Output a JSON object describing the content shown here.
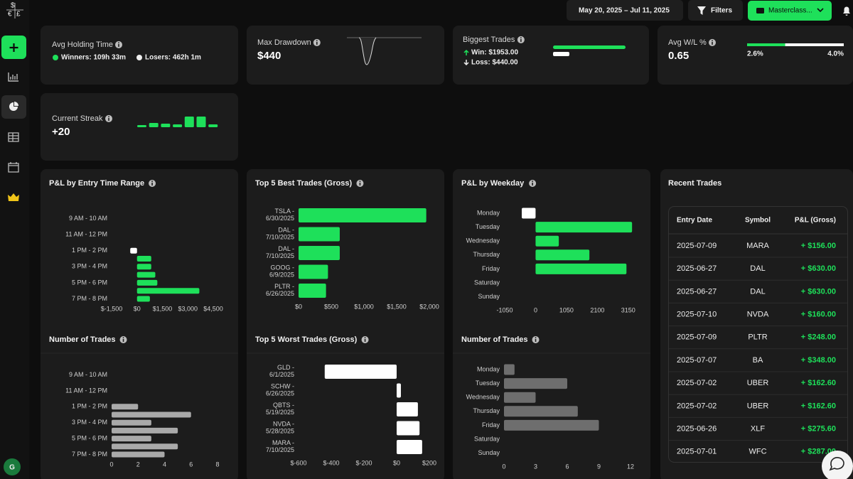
{
  "header": {
    "logo": [
      "$",
      "€",
      "£"
    ],
    "date_range": "May 20, 2025 – Jul 11, 2025",
    "filters": "Filters",
    "account": "Masterclass..."
  },
  "sidebar": {
    "user_initial": "G"
  },
  "stats": {
    "avg_holding_time": {
      "title": "Avg Holding Time",
      "winners": "Winners: 109h 33m",
      "losers": "Losers: 462h 1m"
    },
    "max_drawdown": {
      "title": "Max Drawdown",
      "value": "$440"
    },
    "biggest_trades": {
      "title": "Biggest Trades",
      "win": {
        "label": "Win: $1953.00",
        "value": 1953,
        "color": "#1ee05a"
      },
      "loss": {
        "label": "Loss: $440.00",
        "value": 440,
        "color": "#ffffff"
      }
    },
    "avg_wl": {
      "title": "Avg W/L %",
      "value": "0.65",
      "win": {
        "label": "2.6%",
        "value": 2.6,
        "color": "#1ee05a"
      },
      "loss": {
        "label": "4.0%",
        "value": 4.0,
        "color": "#ffffff"
      }
    },
    "current_streak": {
      "title": "Current Streak",
      "value": "+20",
      "bars": [
        3,
        6,
        5,
        4,
        15,
        15,
        4
      ],
      "color": "#1ee05a"
    }
  },
  "chart_data": [
    {
      "type": "bar",
      "orientation": "horizontal",
      "title": "P&L by Entry Time Range",
      "categories": [
        "9 AM - 10 AM",
        null,
        "11 AM - 12 PM",
        null,
        "1 PM - 2 PM",
        null,
        "3 PM - 4 PM",
        null,
        "5 PM - 6 PM",
        null,
        "7 PM - 8 PM"
      ],
      "values": [
        null,
        null,
        null,
        null,
        -400,
        840,
        840,
        1080,
        1200,
        3680,
        760
      ],
      "color": "#1ee05a",
      "negative_color": "#ffffff",
      "xlim": [
        -1500,
        4500
      ],
      "xticks": [
        {
          "value": -1500,
          "label": "$-1,500"
        },
        {
          "value": 0,
          "label": "$0"
        },
        {
          "value": 1500,
          "label": "$1,500"
        },
        {
          "value": 3000,
          "label": "$3,000"
        },
        {
          "value": 4500,
          "label": "$4,500"
        }
      ]
    },
    {
      "type": "bar",
      "orientation": "horizontal",
      "title": "Top 5 Best Trades (Gross)",
      "categories": [
        "TSLA - 6/30/2025",
        "DAL - 7/10/2025",
        "DAL - 7/10/2025",
        "GOOG - 6/9/2025",
        "PLTR - 6/26/2025"
      ],
      "values": [
        1953,
        630,
        630,
        450,
        420
      ],
      "color": "#1ee05a",
      "negative_color": "#ffffff",
      "xlim": [
        0,
        2000
      ],
      "xticks": [
        {
          "value": 0,
          "label": "$0"
        },
        {
          "value": 500,
          "label": "$500"
        },
        {
          "value": 1000,
          "label": "$1,000"
        },
        {
          "value": 1500,
          "label": "$1,500"
        },
        {
          "value": 2000,
          "label": "$2,000"
        }
      ]
    },
    {
      "type": "bar",
      "orientation": "horizontal",
      "title": "P&L by Weekday",
      "categories": [
        "Monday",
        "Tuesday",
        "Wednesday",
        "Thursday",
        "Friday",
        "Saturday",
        "Sunday"
      ],
      "values": [
        -470,
        3280,
        790,
        1830,
        3090,
        null,
        null
      ],
      "color": "#1ee05a",
      "negative_color": "#ffffff",
      "xlim": [
        -1050,
        3300
      ],
      "xticks": [
        -1050,
        0,
        1050,
        2100,
        3150
      ]
    },
    {
      "type": "bar",
      "orientation": "horizontal",
      "title": "Number of Trades",
      "categories": [
        "9 AM - 10 AM",
        null,
        "11 AM - 12 PM",
        null,
        "1 PM - 2 PM",
        null,
        "3 PM - 4 PM",
        null,
        "5 PM - 6 PM",
        null,
        "7 PM - 8 PM"
      ],
      "values": [
        null,
        null,
        null,
        null,
        2,
        6,
        3,
        5,
        3,
        5,
        4
      ],
      "color": "#a9a9a9",
      "negative_color": "#a9a9a9",
      "xlim": [
        0,
        8
      ],
      "xticks": [
        0,
        2,
        4,
        6,
        8
      ]
    },
    {
      "type": "bar",
      "orientation": "horizontal",
      "title": "Top 5 Worst Trades (Gross)",
      "categories": [
        "GLD - 6/1/2025",
        "SCHW - 6/26/2025",
        "QBTS - 5/19/2025",
        "NVDA - 5/28/2025",
        "MARA - 7/10/2025"
      ],
      "values": [
        -440,
        26,
        130,
        140,
        156
      ],
      "color": "#ffffff",
      "negative_color": "#ffffff",
      "xlim": [
        -600,
        200
      ],
      "xticks": [
        {
          "value": -600,
          "label": "$-600"
        },
        {
          "value": -400,
          "label": "$-400"
        },
        {
          "value": -200,
          "label": "$-200"
        },
        {
          "value": 0,
          "label": "$0"
        },
        {
          "value": 200,
          "label": "$200"
        }
      ]
    },
    {
      "type": "bar",
      "orientation": "horizontal",
      "title": "Number of Trades",
      "categories": [
        "Monday",
        "Tuesday",
        "Wednesday",
        "Thursday",
        "Friday",
        "Saturday",
        "Sunday"
      ],
      "values": [
        1,
        6,
        3,
        7,
        9,
        null,
        null
      ],
      "color": "#6e6e6e",
      "negative_color": "#6e6e6e",
      "xlim": [
        0,
        12
      ],
      "xticks": [
        0,
        3,
        6,
        9,
        12
      ]
    }
  ],
  "recent_trades": {
    "title": "Recent Trades",
    "columns": [
      "Entry Date",
      "Symbol",
      "P&L (Gross)"
    ],
    "rows": [
      [
        "2025-07-09",
        "MARA",
        "+ $156.00"
      ],
      [
        "2025-06-27",
        "DAL",
        "+ $630.00"
      ],
      [
        "2025-06-27",
        "DAL",
        "+ $630.00"
      ],
      [
        "2025-07-10",
        "NVDA",
        "+ $160.00"
      ],
      [
        "2025-07-09",
        "PLTR",
        "+ $248.00"
      ],
      [
        "2025-07-07",
        "BA",
        "+ $348.00"
      ],
      [
        "2025-07-02",
        "UBER",
        "+ $162.60"
      ],
      [
        "2025-07-02",
        "UBER",
        "+ $162.60"
      ],
      [
        "2025-06-26",
        "XLF",
        "+ $275.60"
      ],
      [
        "2025-07-01",
        "WFC",
        "+ $287.00"
      ]
    ]
  }
}
